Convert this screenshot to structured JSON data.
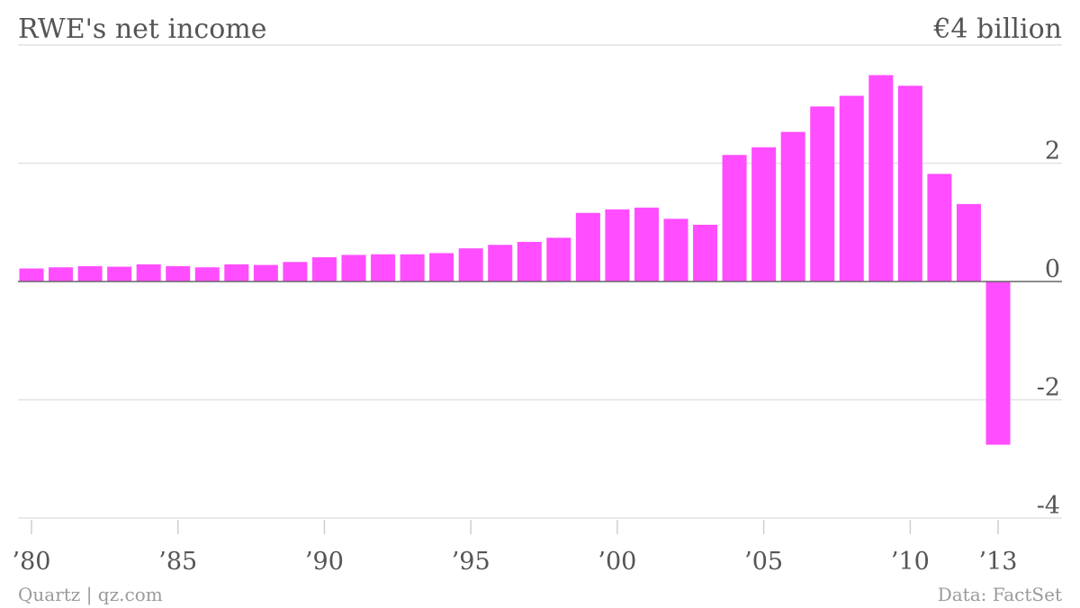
{
  "chart_data": {
    "type": "bar",
    "title": "RWE's net income",
    "unit_label": "€4 billion",
    "bar_color": "#ff4dff",
    "x": [
      1980,
      1981,
      1982,
      1983,
      1984,
      1985,
      1986,
      1987,
      1988,
      1989,
      1990,
      1991,
      1992,
      1993,
      1994,
      1995,
      1996,
      1997,
      1998,
      1999,
      2000,
      2001,
      2002,
      2003,
      2004,
      2005,
      2006,
      2007,
      2008,
      2009,
      2010,
      2011,
      2012,
      2013
    ],
    "values": [
      0.22,
      0.24,
      0.26,
      0.25,
      0.29,
      0.26,
      0.24,
      0.29,
      0.28,
      0.33,
      0.41,
      0.45,
      0.46,
      0.46,
      0.48,
      0.56,
      0.62,
      0.67,
      0.74,
      1.16,
      1.22,
      1.25,
      1.06,
      0.96,
      2.14,
      2.27,
      2.53,
      2.96,
      3.14,
      3.49,
      3.31,
      1.82,
      1.31,
      -2.76
    ],
    "ylim": [
      -4,
      4
    ],
    "yticks": [
      {
        "value": 2,
        "label": "2"
      },
      {
        "value": 0,
        "label": "0"
      },
      {
        "value": -2,
        "label": "-2"
      },
      {
        "value": -4,
        "label": "-4"
      }
    ],
    "xticks": [
      {
        "value": 1980,
        "label": "’80"
      },
      {
        "value": 1985,
        "label": "’85"
      },
      {
        "value": 1990,
        "label": "’90"
      },
      {
        "value": 1995,
        "label": "’95"
      },
      {
        "value": 2000,
        "label": "’00"
      },
      {
        "value": 2005,
        "label": "’05"
      },
      {
        "value": 2010,
        "label": "’10"
      },
      {
        "value": 2013,
        "label": "’13"
      }
    ],
    "grid": true
  },
  "footer": {
    "source_left": "Quartz | qz.com",
    "source_right": "Data: FactSet"
  }
}
